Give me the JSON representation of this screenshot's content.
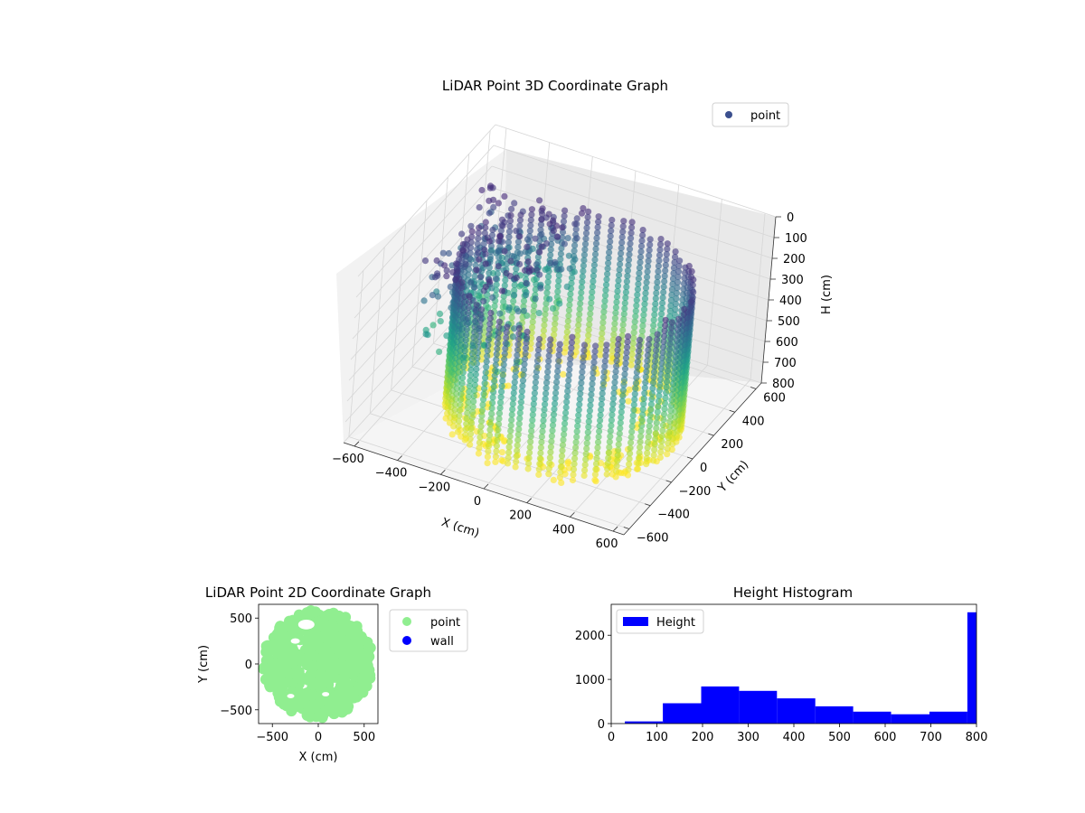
{
  "chart_data": [
    {
      "type": "scatter3d",
      "title": "LiDAR Point 3D Coordinate Graph",
      "xlabel": "X (cm)",
      "ylabel": "Y (cm)",
      "zlabel": "H (cm)",
      "xlim": [
        -650,
        650
      ],
      "ylim": [
        -650,
        650
      ],
      "zlim": [
        0,
        800
      ],
      "z_inverted": true,
      "xticks": [
        "−600",
        "−400",
        "−200",
        "0",
        "200",
        "400",
        "600"
      ],
      "yticks": [
        "−600",
        "−400",
        "−200",
        "0",
        "200",
        "400",
        "600"
      ],
      "zticks": [
        "0",
        "100",
        "200",
        "300",
        "400",
        "500",
        "600",
        "700",
        "800"
      ],
      "legend": {
        "placement": "top-right",
        "entries": [
          {
            "name": "point",
            "color": "#3b4f8e"
          }
        ]
      },
      "colormap": "viridis",
      "grid": true,
      "structure": {
        "wall_ring": {
          "center": [
            50,
            0
          ],
          "radius_x": 500,
          "radius_y": 460,
          "height_range": [
            100,
            800
          ]
        },
        "interior_clutter": {
          "x_range": [
            -550,
            -100
          ],
          "y_range": [
            -300,
            450
          ],
          "height_range": [
            100,
            600
          ]
        },
        "floor": {
          "height": 800
        }
      }
    },
    {
      "type": "scatter",
      "title": "LiDAR Point 2D Coordinate Graph",
      "xlabel": "X (cm)",
      "ylabel": "Y (cm)",
      "xlim": [
        -650,
        650
      ],
      "ylim": [
        -650,
        650
      ],
      "xticks": [
        "−500",
        "0",
        "500"
      ],
      "yticks": [
        "−500",
        "0",
        "500"
      ],
      "legend": {
        "placement": "outside-right",
        "entries": [
          {
            "name": "point",
            "color": "#90ee90"
          },
          {
            "name": "wall",
            "color": "#0000ff"
          }
        ]
      },
      "series": [
        {
          "name": "point",
          "color": "#90ee90",
          "footprint_radius": 600
        },
        {
          "name": "wall",
          "color": "#0000ff",
          "values": []
        }
      ]
    },
    {
      "type": "bar",
      "title": "Height Histogram",
      "legend": {
        "placement": "top-left",
        "entries": [
          {
            "name": "Height",
            "color": "#0000ff"
          }
        ]
      },
      "xlim": [
        0,
        800
      ],
      "ylim": [
        0,
        2700
      ],
      "xticks": [
        "0",
        "100",
        "200",
        "300",
        "400",
        "500",
        "600",
        "700",
        "800"
      ],
      "yticks": [
        "0",
        "1000",
        "2000"
      ],
      "bins": [
        {
          "x0": 30,
          "x1": 113,
          "count": 50
        },
        {
          "x0": 113,
          "x1": 197,
          "count": 460
        },
        {
          "x0": 197,
          "x1": 280,
          "count": 840
        },
        {
          "x0": 280,
          "x1": 363,
          "count": 740
        },
        {
          "x0": 363,
          "x1": 447,
          "count": 570
        },
        {
          "x0": 447,
          "x1": 530,
          "count": 390
        },
        {
          "x0": 530,
          "x1": 613,
          "count": 270
        },
        {
          "x0": 613,
          "x1": 697,
          "count": 210
        },
        {
          "x0": 697,
          "x1": 780,
          "count": 270
        },
        {
          "x0": 780,
          "x1": 800,
          "count": 2520
        }
      ],
      "color": "#0000ff"
    }
  ]
}
